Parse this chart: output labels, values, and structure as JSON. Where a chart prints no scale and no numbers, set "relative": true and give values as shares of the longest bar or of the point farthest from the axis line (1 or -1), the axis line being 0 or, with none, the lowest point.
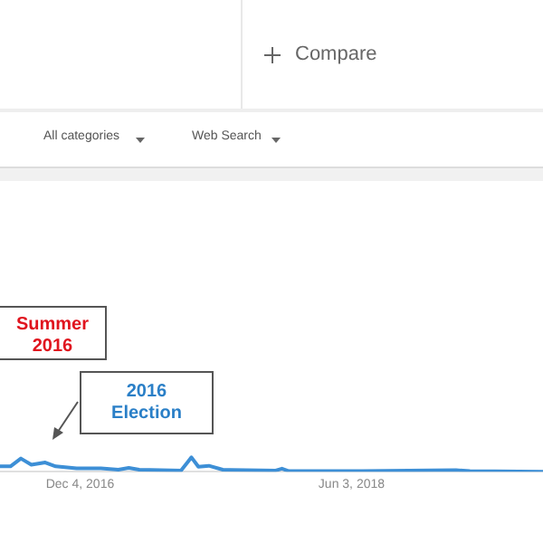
{
  "chart_data": {
    "type": "line",
    "relative": true,
    "color": "#3d8fd6",
    "marker": "none",
    "x": [
      "2016-06-26",
      "2016-07-17",
      "2016-08-07",
      "2016-08-28",
      "2016-09-25",
      "2016-10-16",
      "2016-11-27",
      "2017-01-15",
      "2017-02-19",
      "2017-03-12",
      "2017-04-02",
      "2017-06-25",
      "2017-07-16",
      "2017-07-30",
      "2017-08-20",
      "2017-09-17",
      "2017-12-31",
      "2018-01-14",
      "2018-01-28",
      "2018-06-24",
      "2018-12-30",
      "2019-01-27",
      "2019-06-23"
    ],
    "values": [
      0.37,
      0.37,
      0.92,
      0.48,
      0.64,
      0.37,
      0.23,
      0.23,
      0.14,
      0.27,
      0.14,
      0.07,
      1,
      0.34,
      0.41,
      0.14,
      0.07,
      0.21,
      0.04,
      0.04,
      0.11,
      0.04,
      0
    ],
    "xlim": [
      "2016-06-26",
      "2019-06-23"
    ],
    "xticks": [
      {
        "value": "2016-12-04",
        "label": "Dec 4, 2016"
      },
      {
        "value": "2018-06-03",
        "label": "Jun 3, 2018"
      }
    ],
    "annotations": [
      "Compare",
      "All categories",
      "Web Search",
      "Summer 2016",
      "2016 Election"
    ]
  }
}
